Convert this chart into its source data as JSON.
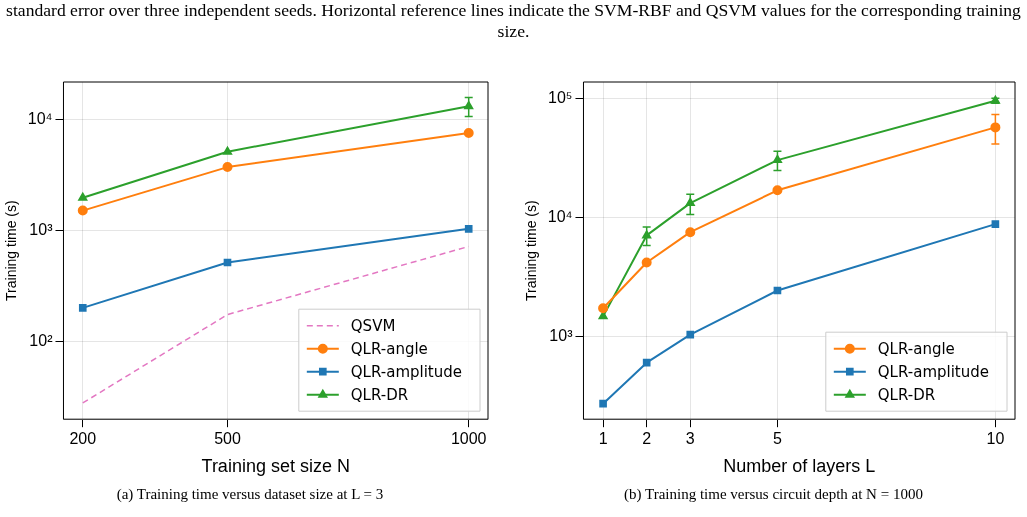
{
  "chart_data": [
    {
      "type": "line",
      "xlabel": "Training set size N",
      "ylabel": "Training time (s)",
      "annotations": [
        "standard error over three independent seeds. Horizontal reference lines indicate the SVM-RBF and QSVM values for the corresponding training size.",
        "(a) Training time versus dataset size at L = 3"
      ],
      "x": [
        200,
        500,
        1000
      ],
      "xlim": [
        160,
        1040
      ],
      "xticks": [
        200,
        500,
        1000
      ],
      "log": "y",
      "ylim": [
        20,
        21700
      ],
      "yticks": [
        {
          "value": 100,
          "label": "10²"
        },
        {
          "value": 1000,
          "label": "10³"
        },
        {
          "value": 10000,
          "label": "10⁴"
        }
      ],
      "grid": true,
      "legend": "bottom right",
      "series": [
        {
          "name": "QSVM",
          "color": "#e377c2",
          "values": [
            28,
            175,
            718
          ],
          "line_style": "dashed",
          "marker": "none"
        },
        {
          "name": "QLR-angle",
          "color": "#ff7f0e",
          "values": [
            1510,
            3720,
            7530
          ],
          "marker": "circle"
        },
        {
          "name": "QLR-amplitude",
          "color": "#1f77b4",
          "values": [
            201,
            515,
            1035
          ],
          "marker": "square"
        },
        {
          "name": "QLR-DR",
          "color": "#2ca02c",
          "values": [
            1970,
            5120,
            13100
          ],
          "errors": [
            null,
            null,
            [
              10600,
              15700
            ]
          ],
          "marker": "triangle"
        }
      ]
    },
    {
      "type": "line",
      "xlabel": "Number of layers L",
      "ylabel": "Training time (s)",
      "annotations": [
        "(b) Training time versus circuit depth at N = 1000"
      ],
      "x": [
        1,
        2,
        3,
        5,
        10
      ],
      "xlim": [
        0.55,
        10.45
      ],
      "xticks": [
        1,
        2,
        3,
        5,
        10
      ],
      "log": "y",
      "ylim": [
        203,
        137000
      ],
      "yticks": [
        {
          "value": 1000,
          "label": "10³"
        },
        {
          "value": 10000,
          "label": "10⁴"
        },
        {
          "value": 100000,
          "label": "10⁵"
        }
      ],
      "grid": true,
      "legend": "bottom right",
      "series": [
        {
          "name": "QLR-angle",
          "color": "#ff7f0e",
          "values": [
            1730,
            4190,
            7530,
            16900,
            57000
          ],
          "errors": [
            null,
            null,
            null,
            null,
            [
              41300,
              73000
            ]
          ],
          "marker": "circle"
        },
        {
          "name": "QLR-amplitude",
          "color": "#1f77b4",
          "values": [
            274,
            605,
            1040,
            2440,
            8790
          ],
          "marker": "square"
        },
        {
          "name": "QLR-DR",
          "color": "#2ca02c",
          "values": [
            1480,
            7070,
            13200,
            30300,
            95500
          ],
          "errors": [
            null,
            [
              5820,
              8300
            ],
            [
              10600,
              15700
            ],
            [
              24800,
              35900
            ],
            [
              91000,
              100000
            ]
          ],
          "marker": "triangle"
        }
      ]
    }
  ]
}
